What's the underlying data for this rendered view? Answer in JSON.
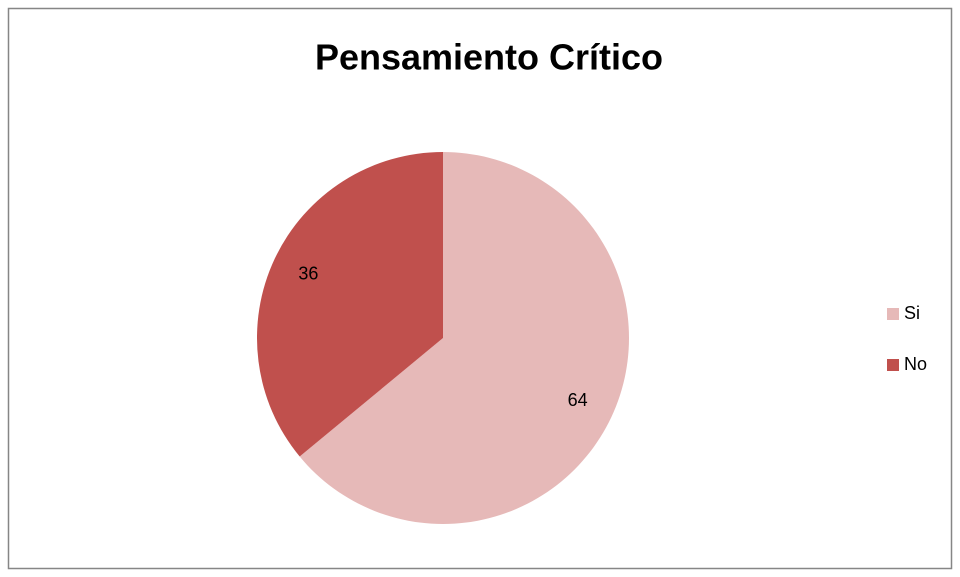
{
  "chart_data": {
    "type": "pie",
    "title": "Pensamiento Crítico",
    "categories": [
      "Si",
      "No"
    ],
    "values": [
      64,
      36
    ],
    "colors": [
      "#e6b9b8",
      "#c0504d"
    ],
    "legend": "right"
  }
}
